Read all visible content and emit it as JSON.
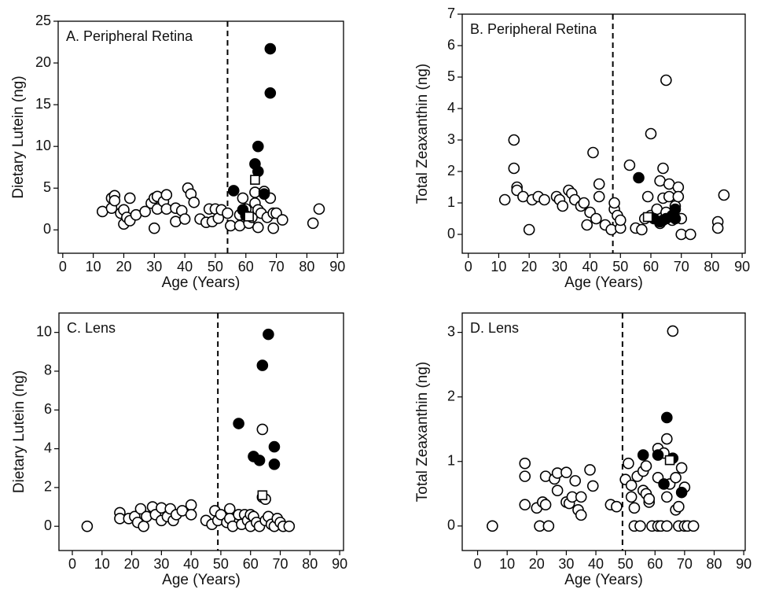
{
  "chart_data": [
    {
      "type": "scatter",
      "label": "A. Peripheral Retina",
      "x_label": "Age (Years)",
      "y_label": "Dietary Lutein (ng)",
      "xlim": [
        -1.5,
        92
      ],
      "ylim": [
        -2.8,
        25
      ],
      "xticks": [
        0,
        10,
        20,
        30,
        40,
        50,
        60,
        70,
        80,
        90
      ],
      "yticks": [
        0,
        5,
        10,
        15,
        20,
        25
      ],
      "vline": 54,
      "series": [
        {
          "color": "#000000",
          "marker": "circle",
          "filled": false,
          "x": [
            13,
            16,
            16,
            17,
            17,
            19,
            20,
            20,
            21,
            22,
            22,
            24,
            27,
            29,
            30,
            31,
            30,
            31,
            33,
            34,
            34,
            37,
            37,
            39,
            40,
            41,
            42,
            43,
            45,
            47,
            48,
            49,
            50,
            51,
            52,
            54,
            55,
            58,
            58,
            59,
            60,
            61,
            62,
            63,
            63,
            64,
            64,
            65,
            66,
            67,
            68,
            69,
            69,
            70,
            72,
            82,
            84
          ],
          "values": [
            2.2,
            3.8,
            2.6,
            4.1,
            3.5,
            2,
            2.4,
            0.7,
            1.5,
            3.8,
            1.1,
            1.8,
            2.2,
            3.2,
            3.8,
            4,
            0.2,
            2.5,
            3.4,
            4.2,
            2.5,
            1,
            2.6,
            2.3,
            1.3,
            5,
            4.3,
            3.3,
            1.3,
            0.9,
            2.5,
            1,
            2.5,
            1.4,
            2.4,
            2,
            0.5,
            0.5,
            1.8,
            3.8,
            2.5,
            0.8,
            1.5,
            3.2,
            4.5,
            2.4,
            0.3,
            2,
            4.6,
            1.5,
            3.8,
            2,
            0.2,
            2,
            1.2,
            0.8,
            2.5
          ]
        },
        {
          "color": "#000000",
          "marker": "circle",
          "filled": true,
          "x": [
            56,
            59,
            60,
            63,
            64,
            64,
            66,
            68,
            68
          ],
          "values": [
            4.7,
            2.4,
            1.7,
            7.9,
            7,
            10,
            4.3,
            16.4,
            21.7
          ]
        },
        {
          "color": "#000000",
          "marker": "square",
          "filled": false,
          "x": [
            61,
            63
          ],
          "values": [
            1.6,
            6
          ]
        }
      ]
    },
    {
      "type": "scatter",
      "label": "B. Peripheral Retina",
      "x_label": "Age (Years)",
      "y_label": "Total Zeaxanthin (ng)",
      "xlim": [
        -2,
        91
      ],
      "ylim": [
        -0.6,
        7
      ],
      "xticks": [
        0,
        10,
        20,
        30,
        40,
        50,
        60,
        70,
        80,
        90
      ],
      "yticks": [
        0,
        1,
        2,
        3,
        4,
        5,
        6,
        7
      ],
      "vline": 47.5,
      "series": [
        {
          "color": "#000000",
          "marker": "circle",
          "filled": false,
          "x": [
            12,
            15,
            15,
            16,
            16,
            18,
            20,
            21,
            23,
            25,
            29,
            30,
            31,
            33,
            34,
            35,
            37,
            38,
            39,
            40,
            41,
            42,
            43,
            43,
            45,
            47,
            48,
            48,
            49,
            50,
            50,
            53,
            55,
            57,
            58,
            59,
            60,
            60,
            62,
            63,
            63,
            64,
            64,
            65,
            65,
            66,
            66,
            67,
            68,
            69,
            69,
            70,
            70,
            73,
            82,
            82,
            84
          ],
          "values": [
            1.1,
            3,
            2.1,
            1.5,
            1.4,
            1.2,
            0.15,
            1.1,
            1.2,
            1.1,
            1.2,
            1.1,
            0.9,
            1.4,
            1.3,
            1.1,
            0.9,
            1,
            0.3,
            0.7,
            2.6,
            0.5,
            1.6,
            1.2,
            0.3,
            0.15,
            0.8,
            1,
            0.6,
            0.2,
            0.45,
            2.2,
            0.2,
            0.15,
            0.5,
            1.2,
            3.2,
            0.6,
            0.8,
            1.7,
            0.35,
            2.1,
            1.15,
            4.9,
            0.7,
            1.6,
            1.2,
            0.45,
            0.9,
            1.5,
            1.2,
            0.5,
            0,
            0,
            0.4,
            0.2,
            1.25
          ]
        },
        {
          "color": "#000000",
          "marker": "circle",
          "filled": true,
          "x": [
            56,
            61,
            63,
            64,
            65,
            67,
            68,
            68
          ],
          "values": [
            1.8,
            0.5,
            0.4,
            0.45,
            0.5,
            0.6,
            0.8,
            0.5
          ]
        },
        {
          "color": "#000000",
          "marker": "square",
          "filled": false,
          "x": [
            59
          ],
          "values": [
            0.55
          ]
        }
      ]
    },
    {
      "type": "scatter",
      "label": "C. Lens",
      "x_label": "Age (Years)",
      "y_label": "Dietary Lutein (ng)",
      "xlim": [
        -4.5,
        91.3
      ],
      "ylim": [
        -1.25,
        11
      ],
      "xticks": [
        0,
        10,
        20,
        30,
        40,
        50,
        60,
        70,
        80,
        90
      ],
      "yticks": [
        0,
        2,
        4,
        6,
        8,
        10
      ],
      "vline": 49,
      "series": [
        {
          "color": "#000000",
          "marker": "circle",
          "filled": false,
          "x": [
            5,
            16,
            16,
            19,
            21,
            22,
            23,
            24,
            25,
            27,
            28,
            30,
            30,
            32,
            33,
            34,
            35,
            37,
            40,
            40,
            45,
            47,
            48,
            49,
            50,
            52,
            53,
            53,
            54,
            56,
            57,
            58,
            59,
            60,
            60,
            61,
            62,
            63,
            64,
            64,
            65,
            65,
            66,
            67,
            68,
            69,
            70,
            71,
            73
          ],
          "values": [
            0,
            0.7,
            0.4,
            0.4,
            0.5,
            0.2,
            0.9,
            0,
            0.5,
            1,
            0.6,
            0.3,
            0.95,
            0.5,
            0.9,
            0.3,
            0.6,
            0.8,
            1.1,
            0.6,
            0.3,
            0.1,
            0.8,
            0.3,
            0.6,
            0.2,
            0.9,
            0.4,
            0,
            0.6,
            0.1,
            0.6,
            0.3,
            0.6,
            0,
            0.5,
            0.2,
            0,
            5,
            1.5,
            1.4,
            0.3,
            0.5,
            0.1,
            0,
            0.4,
            0.2,
            0,
            0
          ]
        },
        {
          "color": "#000000",
          "marker": "circle",
          "filled": true,
          "x": [
            56,
            61,
            63,
            64,
            66,
            68,
            68
          ],
          "values": [
            5.3,
            3.6,
            3.4,
            8.3,
            9.9,
            4.1,
            3.2
          ]
        },
        {
          "color": "#000000",
          "marker": "square",
          "filled": false,
          "x": [
            64
          ],
          "values": [
            1.6
          ]
        }
      ]
    },
    {
      "type": "scatter",
      "label": "D. Lens",
      "x_label": "Age (Years)",
      "y_label": "Total Zeaxanthin (ng)",
      "xlim": [
        -5.2,
        90.5
      ],
      "ylim": [
        -0.38,
        3.3
      ],
      "xticks": [
        0,
        10,
        20,
        30,
        40,
        50,
        60,
        70,
        80,
        90
      ],
      "yticks": [
        0,
        1,
        2,
        3
      ],
      "vline": 49,
      "series": [
        {
          "color": "#000000",
          "marker": "circle",
          "filled": false,
          "x": [
            5,
            16,
            16,
            16,
            20,
            21,
            22,
            23,
            23,
            24,
            26,
            27,
            27,
            30,
            30,
            31,
            32,
            33,
            34,
            35,
            35,
            38,
            39,
            45,
            47,
            50,
            51,
            52,
            52,
            53,
            53,
            54,
            55,
            56,
            56,
            57,
            57,
            58,
            58,
            59,
            61,
            61,
            61,
            62,
            63,
            64,
            64,
            64,
            65,
            66,
            67,
            67,
            68,
            68,
            69,
            70,
            70,
            71,
            73
          ],
          "values": [
            0,
            0.97,
            0.77,
            0.33,
            0.28,
            0,
            0.37,
            0.77,
            0.33,
            0,
            0.73,
            0.82,
            0.55,
            0.83,
            0.37,
            0.35,
            0.45,
            0.7,
            0.25,
            0.17,
            0.45,
            0.87,
            0.62,
            0.33,
            0.3,
            0.72,
            0.97,
            0.63,
            0.45,
            0.28,
            0,
            0.77,
            0,
            0.85,
            0.55,
            0.93,
            0.5,
            0.37,
            0.42,
            0,
            1.2,
            0.75,
            0,
            0,
            1.13,
            1.35,
            0.45,
            0,
            0.65,
            3.02,
            0.75,
            0.25,
            0.3,
            0,
            0.9,
            0.6,
            0,
            0,
            0
          ]
        },
        {
          "color": "#000000",
          "marker": "circle",
          "filled": true,
          "x": [
            56,
            61,
            64,
            63,
            66,
            69
          ],
          "values": [
            1.1,
            1.1,
            1.68,
            0.65,
            1.05,
            0.52
          ]
        },
        {
          "color": "#000000",
          "marker": "square",
          "filled": false,
          "x": [
            65
          ],
          "values": [
            1.02
          ]
        }
      ]
    }
  ]
}
